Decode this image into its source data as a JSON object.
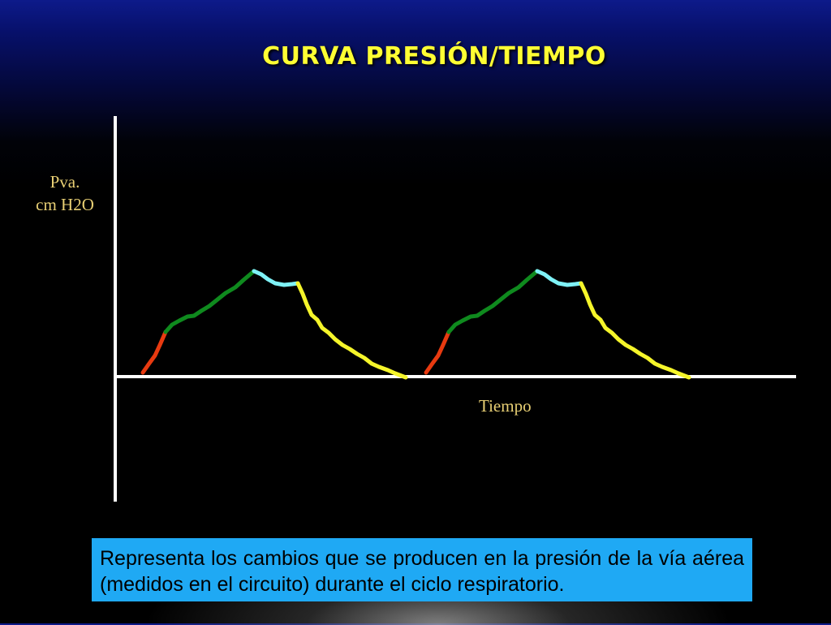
{
  "slide": {
    "title": "CURVA PRESIÓN/TIEMPO",
    "y_axis_label_line1": "Pva.",
    "y_axis_label_line2": "cm H2O",
    "x_axis_label": "Tiempo",
    "caption": "Representa los cambios que se producen en la presión de la vía aérea (medidos en el circuito) durante el ciclo respiratorio."
  },
  "colors": {
    "title": "#ffff33",
    "axis_label": "#e8cf74",
    "axes": "#ffffff",
    "segment_initial_rise": "#e83a10",
    "segment_rise": "#0f8a1e",
    "segment_plateau": "#7ff2f7",
    "segment_fall": "#f5f52a",
    "caption_box": "#1fa9f4"
  },
  "diagram": {
    "cycles": 2,
    "segments": [
      "segment_initial_rise",
      "segment_rise",
      "segment_plateau",
      "segment_fall"
    ]
  }
}
